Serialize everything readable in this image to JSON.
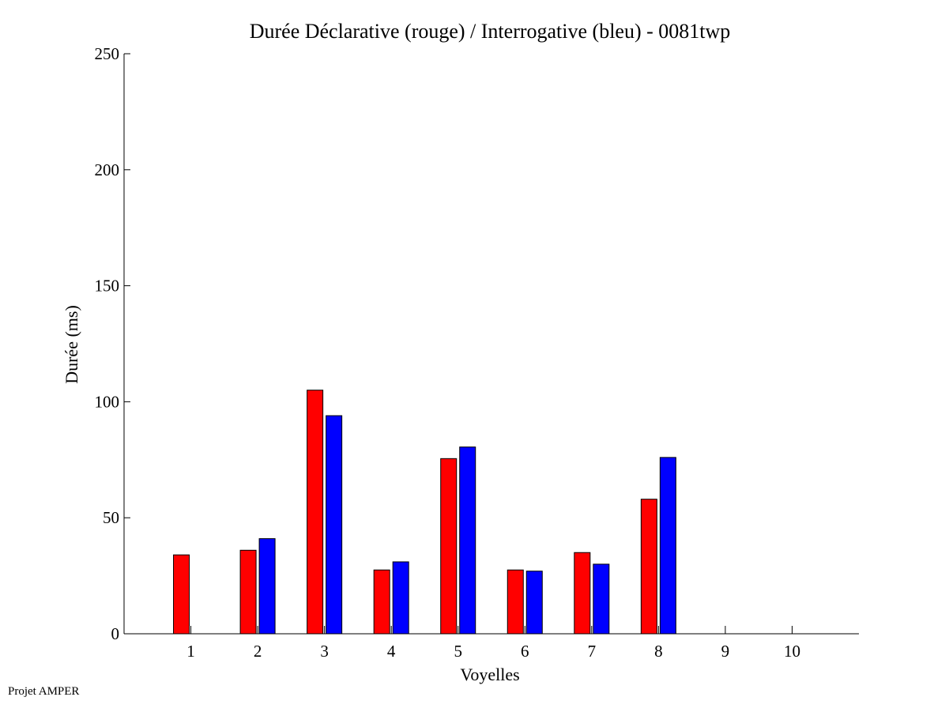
{
  "chart_data": {
    "type": "bar",
    "title": "Durée Déclarative (rouge) / Interrogative (bleu) - 0081twp",
    "xlabel": "Voyelles",
    "ylabel": "Durée (ms)",
    "ylim": [
      0,
      250
    ],
    "xlim": [
      0,
      11
    ],
    "yticks": [
      0,
      50,
      100,
      150,
      200,
      250
    ],
    "categories": [
      "1",
      "2",
      "3",
      "4",
      "5",
      "6",
      "7",
      "8",
      "9",
      "10"
    ],
    "grid": false,
    "legend": "none",
    "series": [
      {
        "color": "#ff0000",
        "values": [
          34,
          36,
          105,
          27.5,
          75.5,
          27.5,
          35,
          58,
          null,
          null
        ]
      },
      {
        "color": "#0000ff",
        "values": [
          null,
          41,
          94,
          31,
          80.5,
          27,
          30,
          76,
          null,
          null
        ]
      }
    ]
  },
  "footer": "Projet AMPER"
}
